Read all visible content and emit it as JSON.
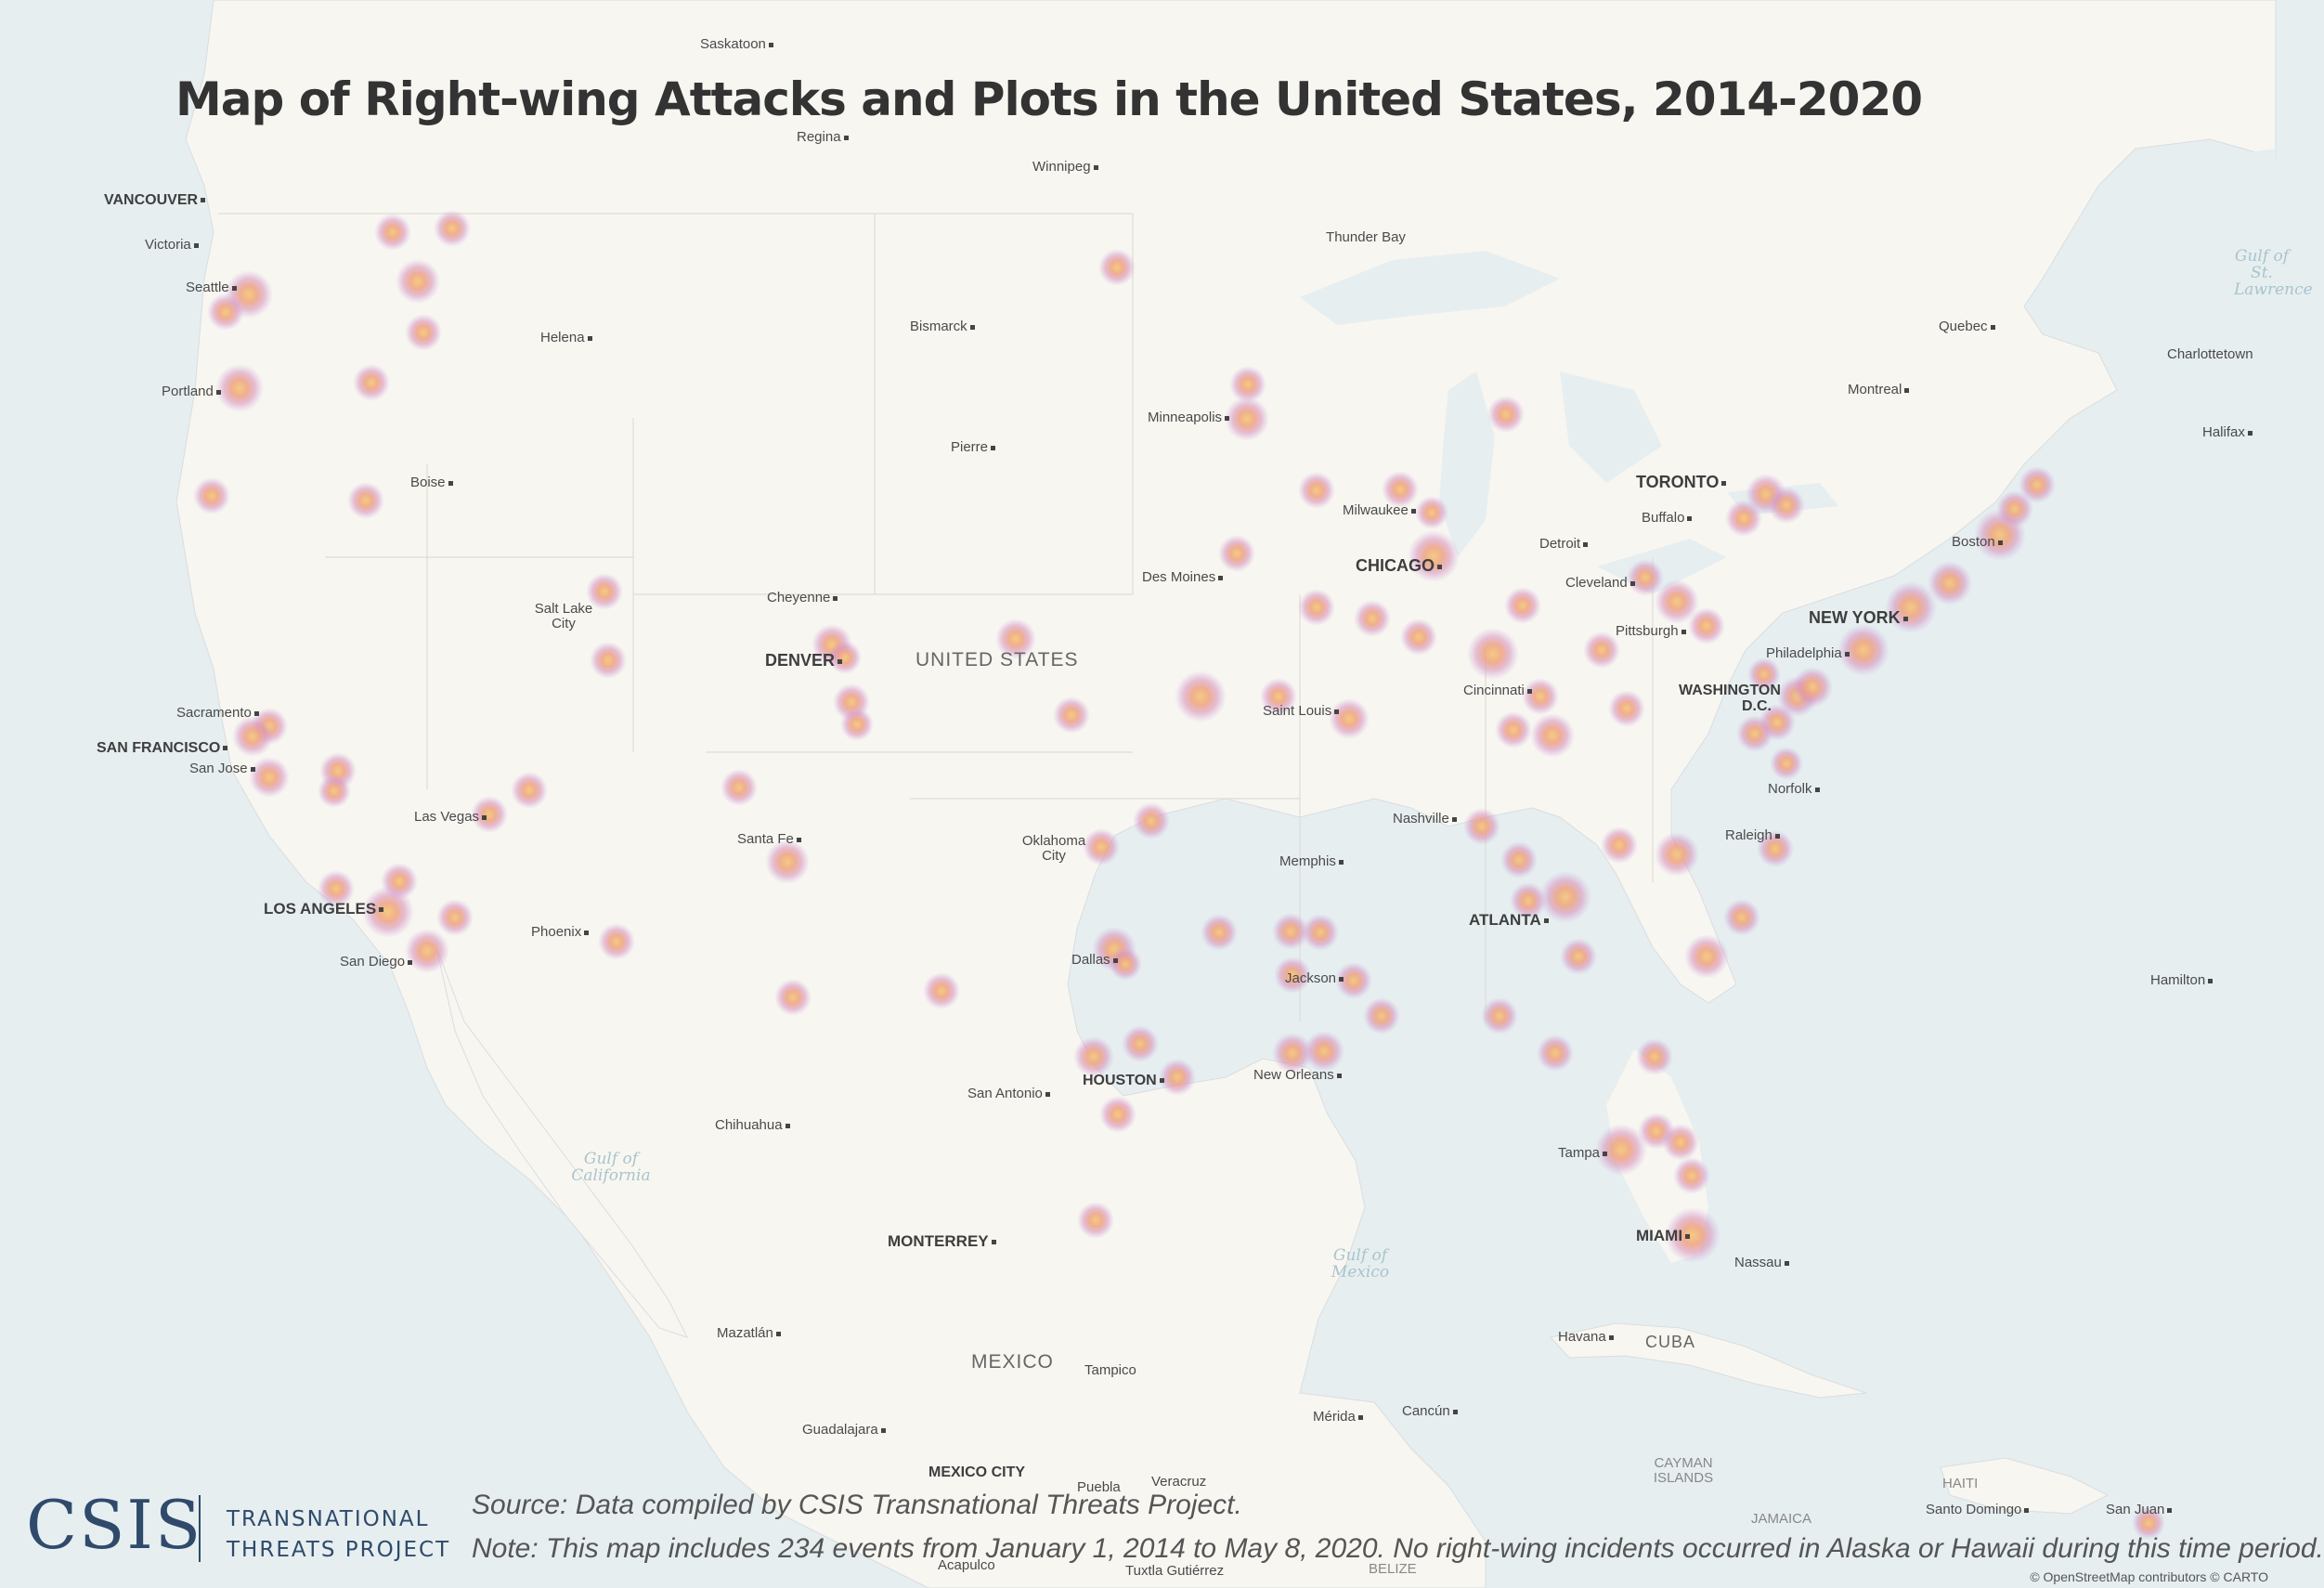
{
  "title": "Map of Right-wing Attacks and Plots in the United States, 2014-2020",
  "source": "Source: Data compiled by CSIS Transnational Threats Project.",
  "note": "Note: This map includes 234 events from January 1, 2014 to May 8, 2020. No right-wing incidents occurred in Alaska or Hawaii during this time period.",
  "logo": {
    "org": "CSIS",
    "line1": "TRANSNATIONAL",
    "line2": "THREATS PROJECT"
  },
  "attribution": "© OpenStreetMap contributors © CARTO",
  "colors": {
    "water": "#e6eef0",
    "land": "#f8f6f1",
    "heat_core": "#f5c87a",
    "heat_mid": "#e79a9a",
    "heat_edge": "#c7a6e3"
  },
  "labels": {
    "saskatoon": "Saskatoon",
    "regina": "Regina",
    "winnipeg": "Winnipeg",
    "vancouver": "VANCOUVER",
    "victoria": "Victoria",
    "seattle": "Seattle",
    "portland": "Portland",
    "helena": "Helena",
    "boise": "Boise",
    "bismarck": "Bismarck",
    "pierre": "Pierre",
    "minneapolis": "Minneapolis",
    "thunder_bay": "Thunder Bay",
    "quebec": "Quebec",
    "charlottetown": "Charlottetown",
    "montreal": "Montreal",
    "halifax": "Halifax",
    "toronto": "TORONTO",
    "buffalo": "Buffalo",
    "detroit": "Detroit",
    "milwaukee": "Milwaukee",
    "chicago": "CHICAGO",
    "boston": "Boston",
    "cleveland": "Cleveland",
    "new_york": "NEW YORK",
    "pittsburgh": "Pittsburgh",
    "philadelphia": "Philadelphia",
    "washington": "WASHINGTON D.C.",
    "des_moines": "Des Moines",
    "cheyenne": "Cheyenne",
    "salt_lake": "Salt Lake City",
    "denver": "DENVER",
    "united_states": "UNITED STATES",
    "cincinnati": "Cincinnati",
    "saint_louis": "Saint Louis",
    "sacramento": "Sacramento",
    "san_francisco": "SAN FRANCISCO",
    "san_jose": "San Jose",
    "las_vegas": "Las Vegas",
    "nashville": "Nashville",
    "norfolk": "Norfolk",
    "raleigh": "Raleigh",
    "santa_fe": "Santa Fe",
    "oklahoma_city": "Oklahoma City",
    "memphis": "Memphis",
    "atlanta": "ATLANTA",
    "los_angeles": "LOS ANGELES",
    "phoenix": "Phoenix",
    "san_diego": "San Diego",
    "dallas": "Dallas",
    "hamilton": "Hamilton",
    "jackson": "Jackson",
    "houston": "HOUSTON",
    "new_orleans": "New Orleans",
    "san_antonio": "San Antonio",
    "chihuahua": "Chihuahua",
    "gulf_california": "Gulf of California",
    "tampa": "Tampa",
    "monterrey": "MONTERREY",
    "gulf_mexico": "Gulf of Mexico",
    "miami": "MIAMI",
    "nassau": "Nassau",
    "mazatlan": "Mazatlán",
    "havana": "Havana",
    "cuba": "CUBA",
    "mexico": "MEXICO",
    "tampico": "Tampico",
    "merida": "Mérida",
    "cancun": "Cancún",
    "guadalajara": "Guadalajara",
    "cayman": "CAYMAN ISLANDS",
    "haiti": "HAITI",
    "santo_domingo": "Santo Domingo",
    "san_juan": "San Juan",
    "jamaica": "JAMAICA",
    "mexico_city": "MEXICO CITY",
    "puebla": "Puebla",
    "veracruz": "Veracruz",
    "acapulco": "Acapulco",
    "tuxtla": "Tuxtla Gutiérrez",
    "belize": "BELIZE",
    "gulf_st_lawrence": "Gulf of St. Lawrence"
  }
}
